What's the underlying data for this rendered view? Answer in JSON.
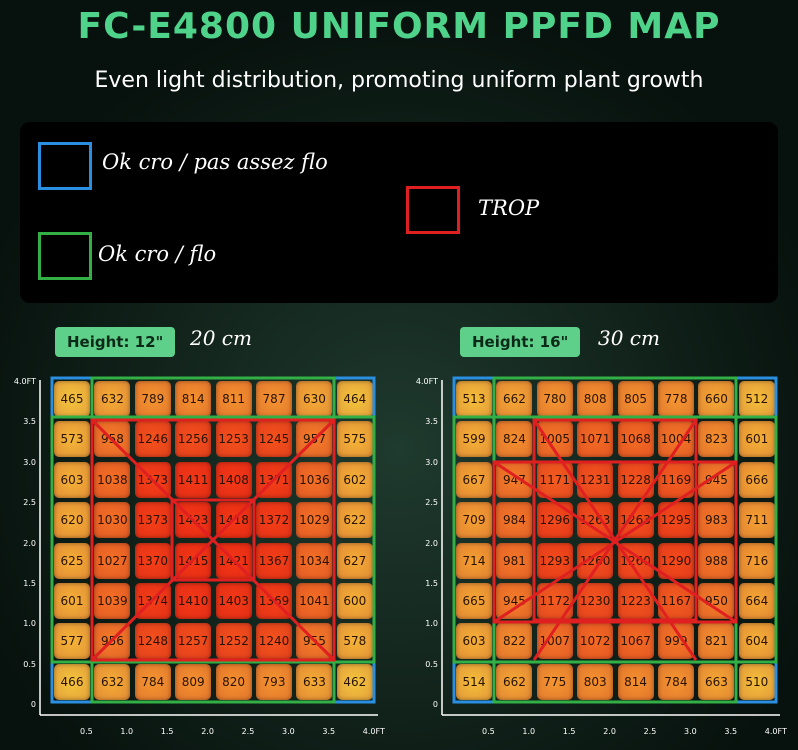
{
  "header": {
    "title": "FC-E4800 UNIFORM PPFD MAP",
    "subtitle": "Even light distribution, promoting uniform plant growth"
  },
  "legend": {
    "blue": "Ok cro / pas assez flo",
    "green": "Ok cro / flo",
    "red": "TROP"
  },
  "maps": [
    {
      "height": "Height: 12\"",
      "note": "20 cm",
      "rows": [
        [
          465,
          632,
          789,
          814,
          811,
          787,
          630,
          464
        ],
        [
          573,
          958,
          1246,
          1256,
          1253,
          1245,
          957,
          575
        ],
        [
          603,
          1038,
          1373,
          1411,
          1408,
          1371,
          1036,
          602
        ],
        [
          620,
          1030,
          1373,
          1423,
          1418,
          1372,
          1029,
          622
        ],
        [
          625,
          1027,
          1370,
          1415,
          1421,
          1367,
          1034,
          627
        ],
        [
          601,
          1039,
          1374,
          1410,
          1403,
          1369,
          1041,
          600
        ],
        [
          577,
          956,
          1248,
          1257,
          1252,
          1240,
          955,
          578
        ],
        [
          466,
          632,
          784,
          809,
          820,
          793,
          633,
          462
        ]
      ]
    },
    {
      "height": "Height: 16\"",
      "note": "30 cm",
      "rows": [
        [
          513,
          662,
          780,
          808,
          805,
          778,
          660,
          512
        ],
        [
          599,
          824,
          1005,
          1071,
          1068,
          1004,
          823,
          601
        ],
        [
          667,
          947,
          1171,
          1231,
          1228,
          1169,
          945,
          666
        ],
        [
          709,
          984,
          1296,
          1263,
          1263,
          1295,
          983,
          711
        ],
        [
          714,
          981,
          1293,
          1260,
          1260,
          1290,
          988,
          716
        ],
        [
          665,
          945,
          1172,
          1230,
          1223,
          1167,
          950,
          664
        ],
        [
          603,
          822,
          1007,
          1072,
          1067,
          999,
          821,
          604
        ],
        [
          514,
          662,
          775,
          803,
          814,
          784,
          663,
          510
        ]
      ]
    }
  ],
  "yticks": [
    "4.0FT",
    "3.5",
    "3.0",
    "2.5",
    "2.0",
    "1.5",
    "1.0",
    "0.5",
    "0"
  ],
  "xticks": [
    "0.5",
    "1.0",
    "1.5",
    "2.0",
    "2.5",
    "3.0",
    "3.5",
    "4.0FT"
  ]
}
